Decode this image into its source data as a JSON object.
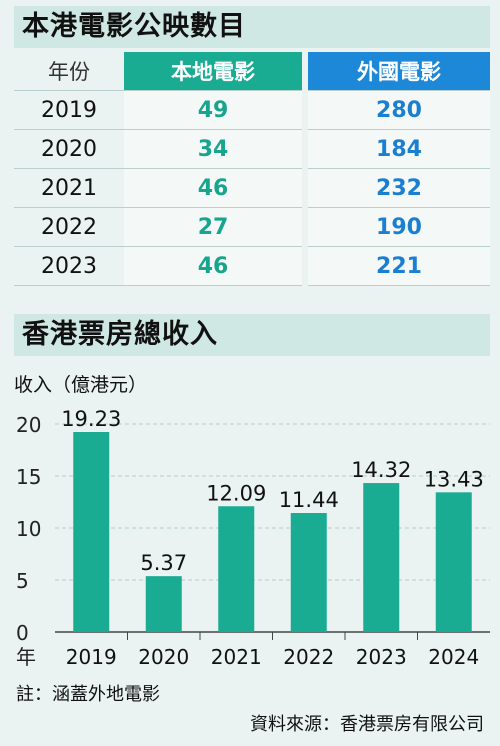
{
  "films": {
    "title": "本港電影公映數目",
    "headers": {
      "year": "年份",
      "local": "本地電影",
      "foreign": "外國電影"
    },
    "rows": [
      {
        "year": "2019",
        "local": "49",
        "foreign": "280"
      },
      {
        "year": "2020",
        "local": "34",
        "foreign": "184"
      },
      {
        "year": "2021",
        "local": "46",
        "foreign": "232"
      },
      {
        "year": "2022",
        "local": "27",
        "foreign": "190"
      },
      {
        "year": "2023",
        "local": "46",
        "foreign": "221"
      }
    ]
  },
  "boxoffice": {
    "title": "香港票房總收入"
  },
  "chart_data": {
    "type": "bar",
    "ylabel": "收入（億港元）",
    "xlabel": "年",
    "categories": [
      "2019",
      "2020",
      "2021",
      "2022",
      "2023",
      "2024"
    ],
    "values": [
      19.23,
      5.37,
      12.09,
      11.44,
      14.32,
      13.43
    ],
    "value_labels": [
      "19.23",
      "5.37",
      "12.09",
      "11.44",
      "14.32",
      "13.43"
    ],
    "yticks": [
      "0",
      "5",
      "10",
      "15",
      "20"
    ],
    "ylim": [
      0,
      20
    ],
    "grid": true,
    "bar_color": "#1aab93"
  },
  "footer": {
    "note": "註：涵蓋外地電影",
    "source": "資料來源：香港票房有限公司"
  },
  "colors": {
    "local": "#19a48d",
    "foreign": "#1a7fd0",
    "banner": "#cfe8e3"
  }
}
